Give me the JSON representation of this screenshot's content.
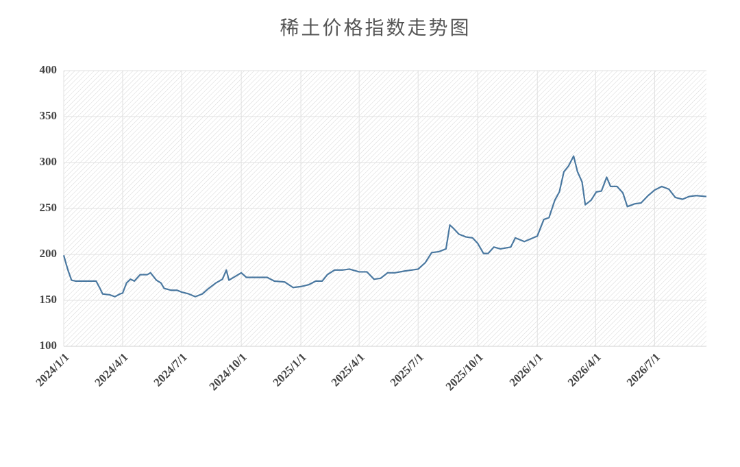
{
  "chart_data": {
    "type": "line",
    "title": "稀土价格指数走势图",
    "x": [
      "2024/1/1",
      "2024/1/5",
      "2024/1/8",
      "2024/1/13",
      "2024/1/19",
      "2024/2/20",
      "2024/2/26",
      "2024/3/1",
      "2024/3/12",
      "2024/3/20",
      "2024/3/28",
      "2024/4/1",
      "2024/4/7",
      "2024/4/13",
      "2024/4/19",
      "2024/4/28",
      "2024/5/9",
      "2024/5/14",
      "2024/5/23",
      "2024/5/30",
      "2024/6/4",
      "2024/6/15",
      "2024/6/24",
      "2024/7/1",
      "2024/7/12",
      "2024/7/22",
      "2024/8/2",
      "2024/8/10",
      "2024/8/23",
      "2024/9/2",
      "2024/9/8",
      "2024/9/12",
      "2024/9/24",
      "2024/10/1",
      "2024/10/9",
      "2024/10/20",
      "2024/11/10",
      "2024/11/21",
      "2024/12/7",
      "2024/12/20",
      "2025/1/1",
      "2025/1/13",
      "2025/1/24",
      "2025/2/3",
      "2025/2/11",
      "2025/2/22",
      "2025/3/6",
      "2025/3/17",
      "2025/4/1",
      "2025/4/13",
      "2025/4/24",
      "2025/5/4",
      "2025/5/15",
      "2025/5/26",
      "2025/6/11",
      "2025/6/21",
      "2025/7/1",
      "2025/7/12",
      "2025/7/22",
      "2025/8/2",
      "2025/8/13",
      "2025/8/19",
      "2025/8/25",
      "2025/9/2",
      "2025/9/13",
      "2025/9/23",
      "2025/10/1",
      "2025/10/10",
      "2025/10/17",
      "2025/10/26",
      "2025/11/5",
      "2025/11/21",
      "2025/11/28",
      "2025/12/12",
      "2026/1/1",
      "2026/1/11",
      "2026/1/19",
      "2026/1/28",
      "2026/2/4",
      "2026/2/11",
      "2026/2/18",
      "2026/2/26",
      "2026/3/4",
      "2026/3/11",
      "2026/3/16",
      "2026/3/25",
      "2026/4/2",
      "2026/4/10",
      "2026/4/18",
      "2026/4/24",
      "2026/5/4",
      "2026/5/13",
      "2026/5/20",
      "2026/5/31",
      "2026/6/10",
      "2026/6/21",
      "2026/7/1",
      "2026/7/12",
      "2026/7/23",
      "2026/8/2",
      "2026/8/13",
      "2026/8/23",
      "2026/9/3",
      "2026/9/19"
    ],
    "values": [
      199,
      189,
      182,
      172,
      171,
      171,
      163,
      157,
      156,
      154,
      157,
      158,
      169,
      173,
      171,
      178,
      178,
      180,
      172,
      169,
      163,
      161,
      161,
      159,
      157,
      154,
      157,
      162,
      169,
      173,
      183,
      172,
      177,
      180,
      175,
      175,
      175,
      171,
      170,
      164,
      165,
      167,
      171,
      171,
      178,
      183,
      183,
      184,
      181,
      181,
      173,
      174,
      180,
      180,
      182,
      183,
      184,
      191,
      202,
      203,
      206,
      232,
      228,
      222,
      219,
      218,
      212,
      201,
      201,
      208,
      206,
      208,
      218,
      214,
      220,
      238,
      240,
      259,
      268,
      290,
      296,
      307,
      290,
      279,
      254,
      259,
      268,
      269,
      284,
      274,
      274,
      267,
      252,
      255,
      256,
      264,
      270,
      274,
      271,
      262,
      260,
      263,
      264,
      263
    ],
    "color": "#4a78a0",
    "xlim": [
      "2024/1/1",
      "2026/9/19"
    ],
    "xticks": [
      "2024/1/1",
      "2024/4/1",
      "2024/7/1",
      "2024/10/1",
      "2025/1/1",
      "2025/4/1",
      "2025/7/1",
      "2025/10/1",
      "2026/1/1",
      "2026/4/1",
      "2026/7/1"
    ],
    "ylim": [
      100,
      400
    ],
    "yticks": [
      100,
      150,
      200,
      250,
      300,
      350,
      400
    ],
    "grid": true
  }
}
